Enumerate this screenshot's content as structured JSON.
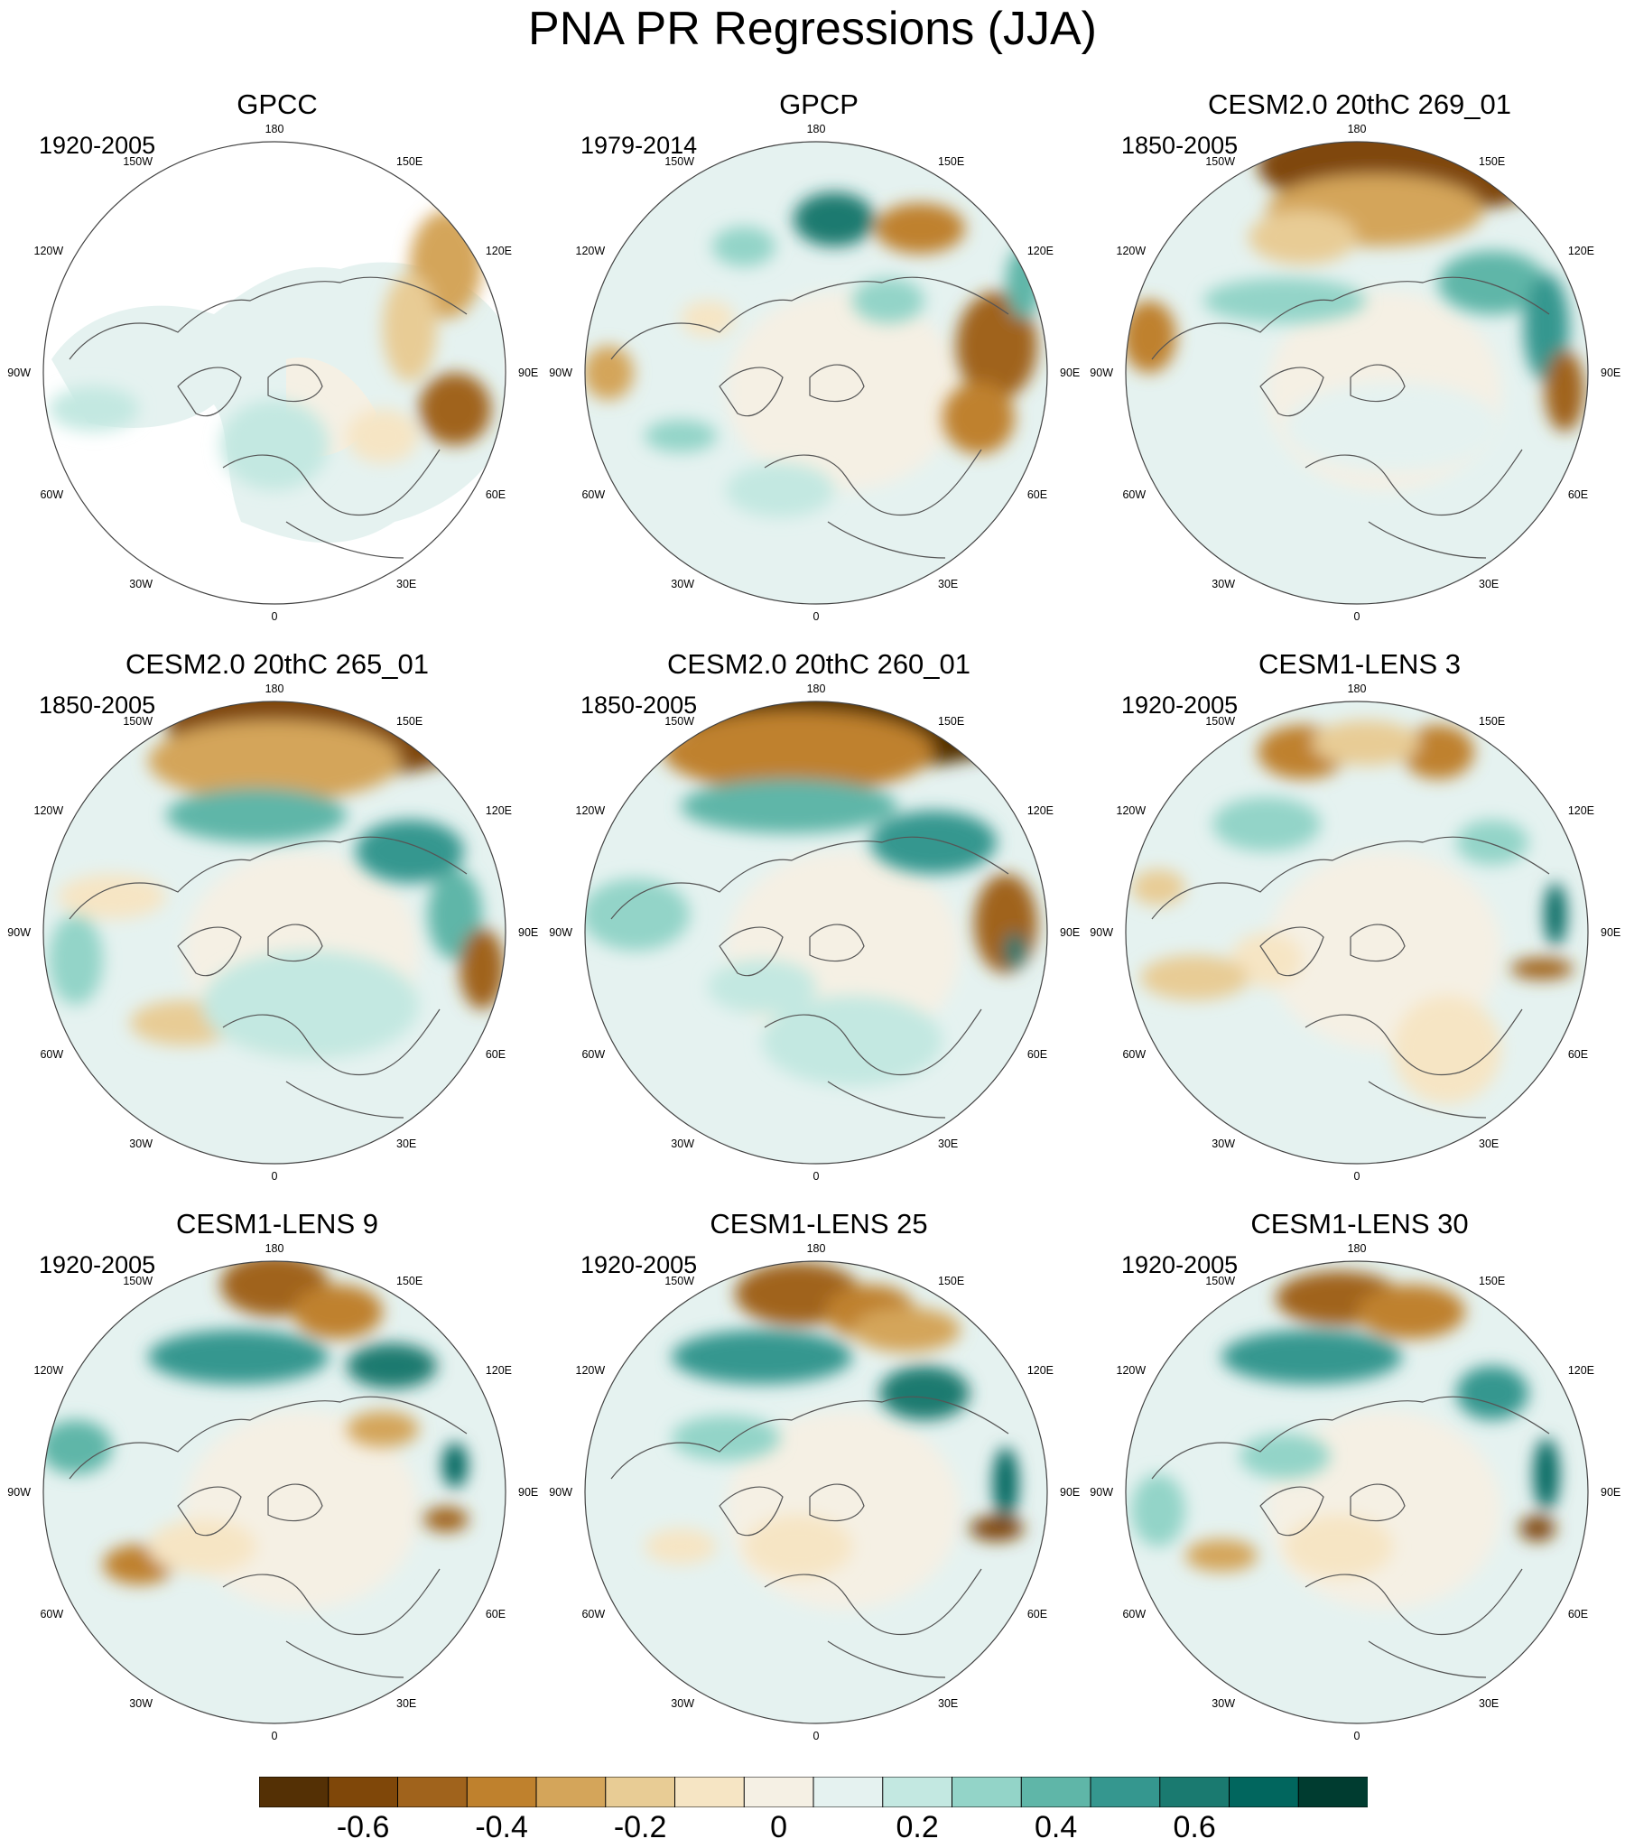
{
  "title": "PNA PR Regressions (JJA)",
  "lon_labels": [
    "180",
    "150E",
    "120E",
    "90E",
    "60E",
    "30E",
    "0",
    "30W",
    "60W",
    "90W",
    "120W",
    "150W"
  ],
  "panels": [
    {
      "name": "GPCC",
      "years": "1920-2005",
      "land_only": true
    },
    {
      "name": "GPCP",
      "years": "1979-2014",
      "land_only": false
    },
    {
      "name": "CESM2.0 20thC 269_01",
      "years": "1850-2005",
      "land_only": false
    },
    {
      "name": "CESM2.0 20thC 265_01",
      "years": "1850-2005",
      "land_only": false
    },
    {
      "name": "CESM2.0 20thC 260_01",
      "years": "1850-2005",
      "land_only": false
    },
    {
      "name": "CESM1-LENS 3",
      "years": "1920-2005",
      "land_only": false
    },
    {
      "name": "CESM1-LENS 9",
      "years": "1920-2005",
      "land_only": false
    },
    {
      "name": "CESM1-LENS 25",
      "years": "1920-2005",
      "land_only": false
    },
    {
      "name": "CESM1-LENS 30",
      "years": "1920-2005",
      "land_only": false
    }
  ],
  "colorbar": {
    "colors": [
      "#543005",
      "#7f4709",
      "#a0631c",
      "#bf812d",
      "#d4a55a",
      "#e8cc95",
      "#f6e5c4",
      "#f5f0e4",
      "#e5f2f0",
      "#c3e8e1",
      "#93d4c8",
      "#5fb6a8",
      "#35978f",
      "#1a7a70",
      "#01665e",
      "#003c30"
    ],
    "tick_labels": [
      "-0.6",
      "-0.4",
      "-0.2",
      "0",
      "0.2",
      "0.4",
      "0.6"
    ],
    "tick_boundaries": [
      2,
      4,
      6,
      8,
      10,
      12,
      14
    ]
  }
}
